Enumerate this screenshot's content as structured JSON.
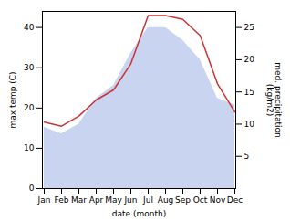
{
  "chart_data": {
    "type": "line",
    "categories": [
      "Jan",
      "Feb",
      "Mar",
      "Apr",
      "May",
      "Jun",
      "Jul",
      "Aug",
      "Sep",
      "Oct",
      "Nov",
      "Dec"
    ],
    "xlabel": "date (month)",
    "ylabel": "max temp (C)",
    "y2label": "med. precipitation\n(kg/m2)",
    "series": [
      {
        "type": "area",
        "axis": "y2",
        "color": "#c8d4f0",
        "values": [
          9.5,
          8.5,
          10.0,
          14.0,
          16.0,
          21.0,
          25.0,
          25.0,
          23.0,
          20.0,
          14.0,
          13.0
        ]
      },
      {
        "type": "line",
        "color": "#cc3333",
        "values": [
          16.5,
          15.5,
          18.0,
          22.0,
          24.5,
          31.0,
          43.0,
          43.0,
          42.0,
          38.0,
          26.0,
          19.0
        ]
      }
    ],
    "ylim": [
      0,
      44
    ],
    "yticks": [
      0,
      10,
      20,
      30,
      40
    ],
    "y2lim": [
      0,
      27.5
    ],
    "y2ticks": [
      5,
      10,
      15,
      20,
      25
    ],
    "grid": false
  }
}
